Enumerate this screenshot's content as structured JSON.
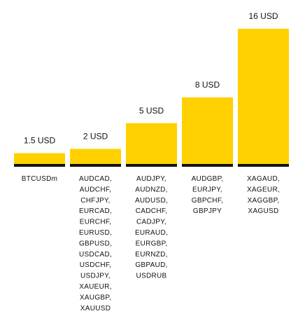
{
  "chart_data": {
    "type": "bar",
    "title": "",
    "xlabel": "",
    "ylabel": "",
    "ylim": [
      0,
      16
    ],
    "grid": false,
    "legend": "none",
    "bar_color": "#FFD100",
    "baseline_color": "#111111",
    "text_color": "#111111",
    "value_labels": [
      "1.5 USD",
      "2 USD",
      "5 USD",
      "8 USD",
      "16 USD"
    ],
    "values": [
      1.5,
      2,
      5,
      8,
      16
    ],
    "categories": [
      [
        "BTCUSDm"
      ],
      [
        "AUDCAD,",
        "AUDCHF,",
        "CHFJPY,",
        "EURCAD,",
        "EURCHF,",
        "EURUSD,",
        "GBPUSD,",
        "USDCAD,",
        "USDCHF,",
        "USDJPY,",
        "XAUEUR,",
        "XAUGBP,",
        "XAUUSD"
      ],
      [
        "AUDJPY,",
        "AUDNZD,",
        "AUDUSD,",
        "CADCHF,",
        "CADJPY,",
        "EURAUD,",
        "EURGBP,",
        "EURNZD,",
        "GBPAUD,",
        "USDRUB"
      ],
      [
        "AUDGBP,",
        "EURJPY,",
        "GBPCHF,",
        "GBPJPY"
      ],
      [
        "XAGAUD,",
        "XAGEUR,",
        "XAGGBP,",
        "XAGUSD"
      ]
    ]
  }
}
